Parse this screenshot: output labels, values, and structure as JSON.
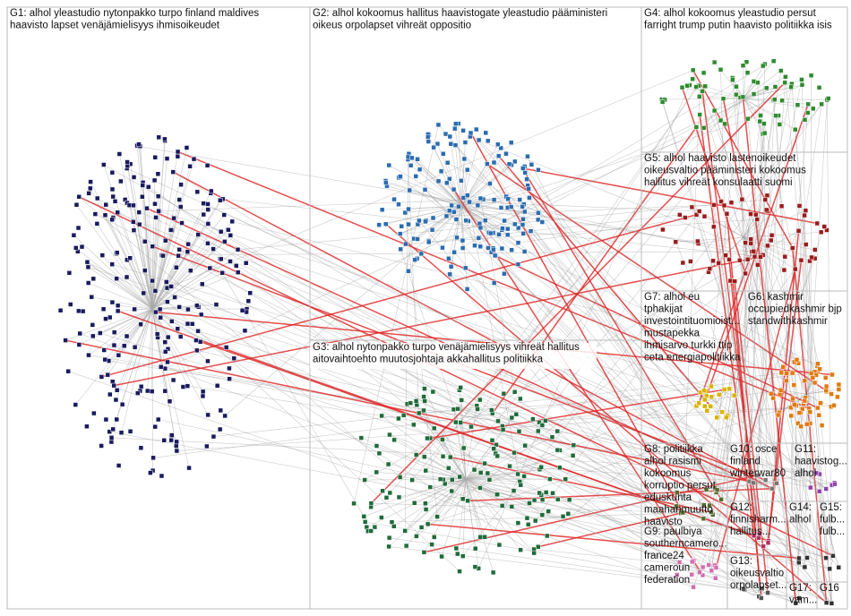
{
  "groups": [
    {
      "lines": [
        "G1: alhol yleastudio nytonpakko turpo finland maldives",
        "haavisto lapset venäjämielisyys ihmisoikeudet"
      ]
    },
    {
      "lines": [
        "G2: alhol kokoomus hallitus haavistogate yleastudio pääministeri",
        "oikeus orpolapset vihreät oppositio"
      ]
    },
    {
      "lines": [
        "G3: alhol nytonpakko turpo venäjämielisyys vihreät hallitus",
        "aitovaihtoehto muutosjohtaja akkahallitus politiikka"
      ]
    },
    {
      "lines": [
        "G4: alhol kokoomus yleastudio persut",
        "farright trump putin haavisto politiikka isis"
      ]
    },
    {
      "lines": [
        "G5: alhol haavisto lastenoikeudet",
        "oikeusvaltio pääministeri kokoomus",
        "hallitus vihreät konsulaatti suomi"
      ]
    },
    {
      "lines": [
        "G6: kashmir",
        "occupiedkashmir bjp",
        "standwithkashmir"
      ]
    },
    {
      "lines": [
        "G7: alhol eu",
        "tphakijat",
        "investointituomioist...",
        "mustapekka",
        "ihmisarvo turkki ttip",
        "ceta energiapolitiikka"
      ]
    },
    {
      "lines": [
        "G8: politiikka",
        "alhol rasismi",
        "kokoomus",
        "korruptio persut",
        "eduskunta",
        "maahanmuutto",
        "haavisto"
      ]
    },
    {
      "lines": [
        "G9: paulbiya",
        "southerncamero...",
        "france24",
        "cameroun",
        "federation"
      ]
    },
    {
      "lines": [
        "G10: osce",
        "finland",
        "winterwar80"
      ]
    },
    {
      "lines": [
        "G11:",
        "haavistog...",
        "alhol"
      ]
    },
    {
      "lines": [
        "G12:",
        "finnisharm...",
        "hallitus..."
      ]
    },
    {
      "lines": [
        "G13:",
        "oikeusvaltio",
        "orpolapset..."
      ]
    },
    {
      "lines": [
        "G14:",
        "alhol"
      ]
    },
    {
      "lines": [
        "G15:",
        "fulb...",
        "fulb..."
      ]
    },
    {
      "lines": [
        "G16"
      ]
    },
    {
      "lines": [
        "G17:",
        "vam..."
      ]
    }
  ]
}
